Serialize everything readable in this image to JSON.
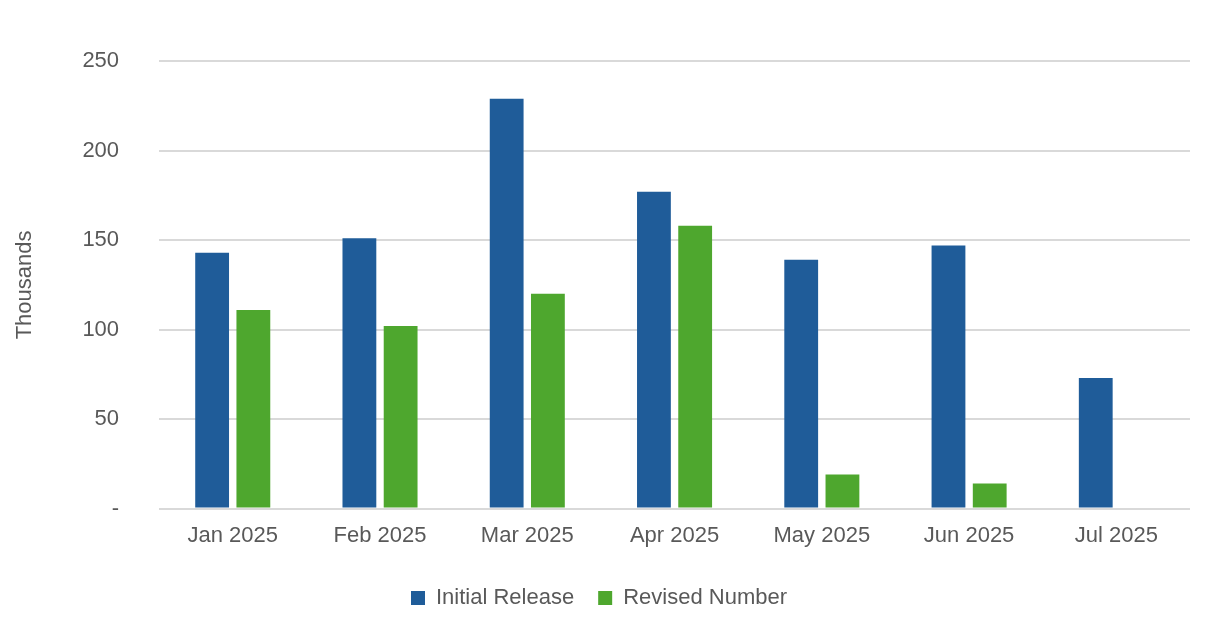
{
  "chart_data": {
    "type": "bar",
    "ylabel": "Thousands",
    "categories": [
      "Jan 2025",
      "Feb 2025",
      "Mar 2025",
      "Apr 2025",
      "May 2025",
      "Jun 2025",
      "Jul 2025"
    ],
    "series": [
      {
        "name": "Initial Release",
        "color": "#1f5c99",
        "values": [
          143,
          151,
          229,
          177,
          139,
          147,
          73
        ]
      },
      {
        "name": "Revised Number",
        "color": "#4ea72e",
        "values": [
          111,
          102,
          120,
          158,
          19,
          14,
          null
        ]
      }
    ],
    "ylim": [
      0,
      250
    ],
    "yticks": [
      {
        "value": 0,
        "label": "-"
      },
      50,
      100,
      150,
      200,
      250
    ],
    "grid": "y",
    "legend": "bottom"
  }
}
